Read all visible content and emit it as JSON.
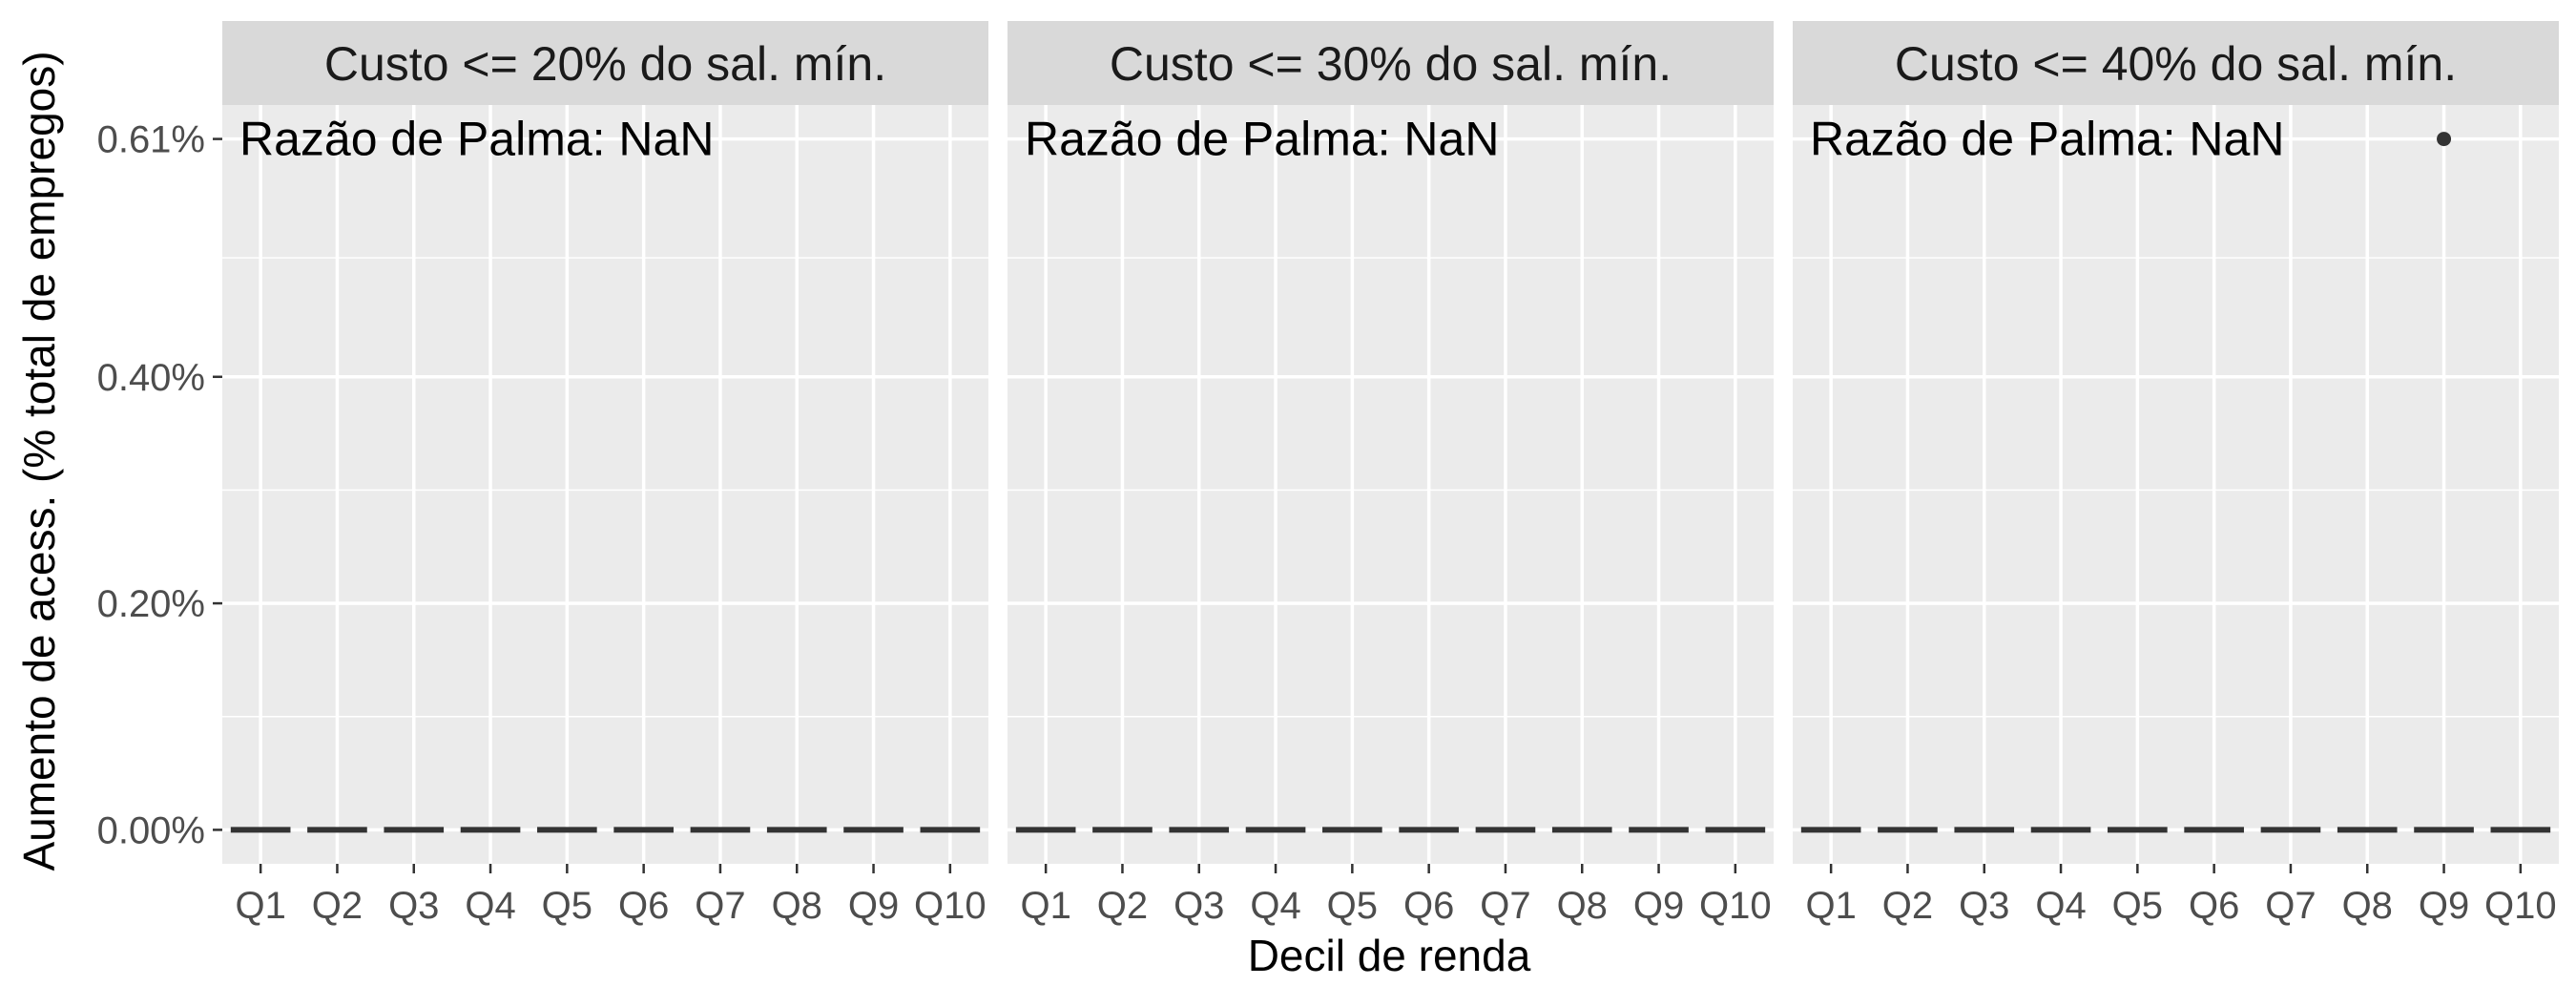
{
  "chart_data": {
    "type": "boxplot",
    "xlabel": "Decil de renda",
    "ylabel": "Aumento de acess. (% total de empregos)",
    "ylim": [
      -0.0003,
      0.0064
    ],
    "y_ticks": [
      0.0,
      0.002,
      0.004,
      0.0061
    ],
    "y_tick_labels": [
      "0.00%",
      "0.20%",
      "0.40%",
      "0.61%"
    ],
    "categories": [
      "Q1",
      "Q2",
      "Q3",
      "Q4",
      "Q5",
      "Q6",
      "Q7",
      "Q8",
      "Q9",
      "Q10"
    ],
    "grid": true,
    "panels": [
      {
        "title": "Custo <= 20% do sal. mín.",
        "annotation": "Razão de Palma: NaN",
        "medians": [
          0,
          0,
          0,
          0,
          0,
          0,
          0,
          0,
          0,
          0
        ],
        "outliers": []
      },
      {
        "title": "Custo <= 30% do sal. mín.",
        "annotation": "Razão de Palma: NaN",
        "medians": [
          0,
          0,
          0,
          0,
          0,
          0,
          0,
          0,
          0,
          0
        ],
        "outliers": []
      },
      {
        "title": "Custo <= 40% do sal. mín.",
        "annotation": "Razão de Palma: NaN",
        "medians": [
          0,
          0,
          0,
          0,
          0,
          0,
          0,
          0,
          0,
          0
        ],
        "outliers": [
          {
            "category": "Q9",
            "value": 0.0061
          }
        ]
      }
    ],
    "colors": {
      "panel_background": "#ebebeb",
      "strip_background": "#d9d9d9",
      "grid": "#ffffff",
      "marks": "#333333"
    }
  }
}
